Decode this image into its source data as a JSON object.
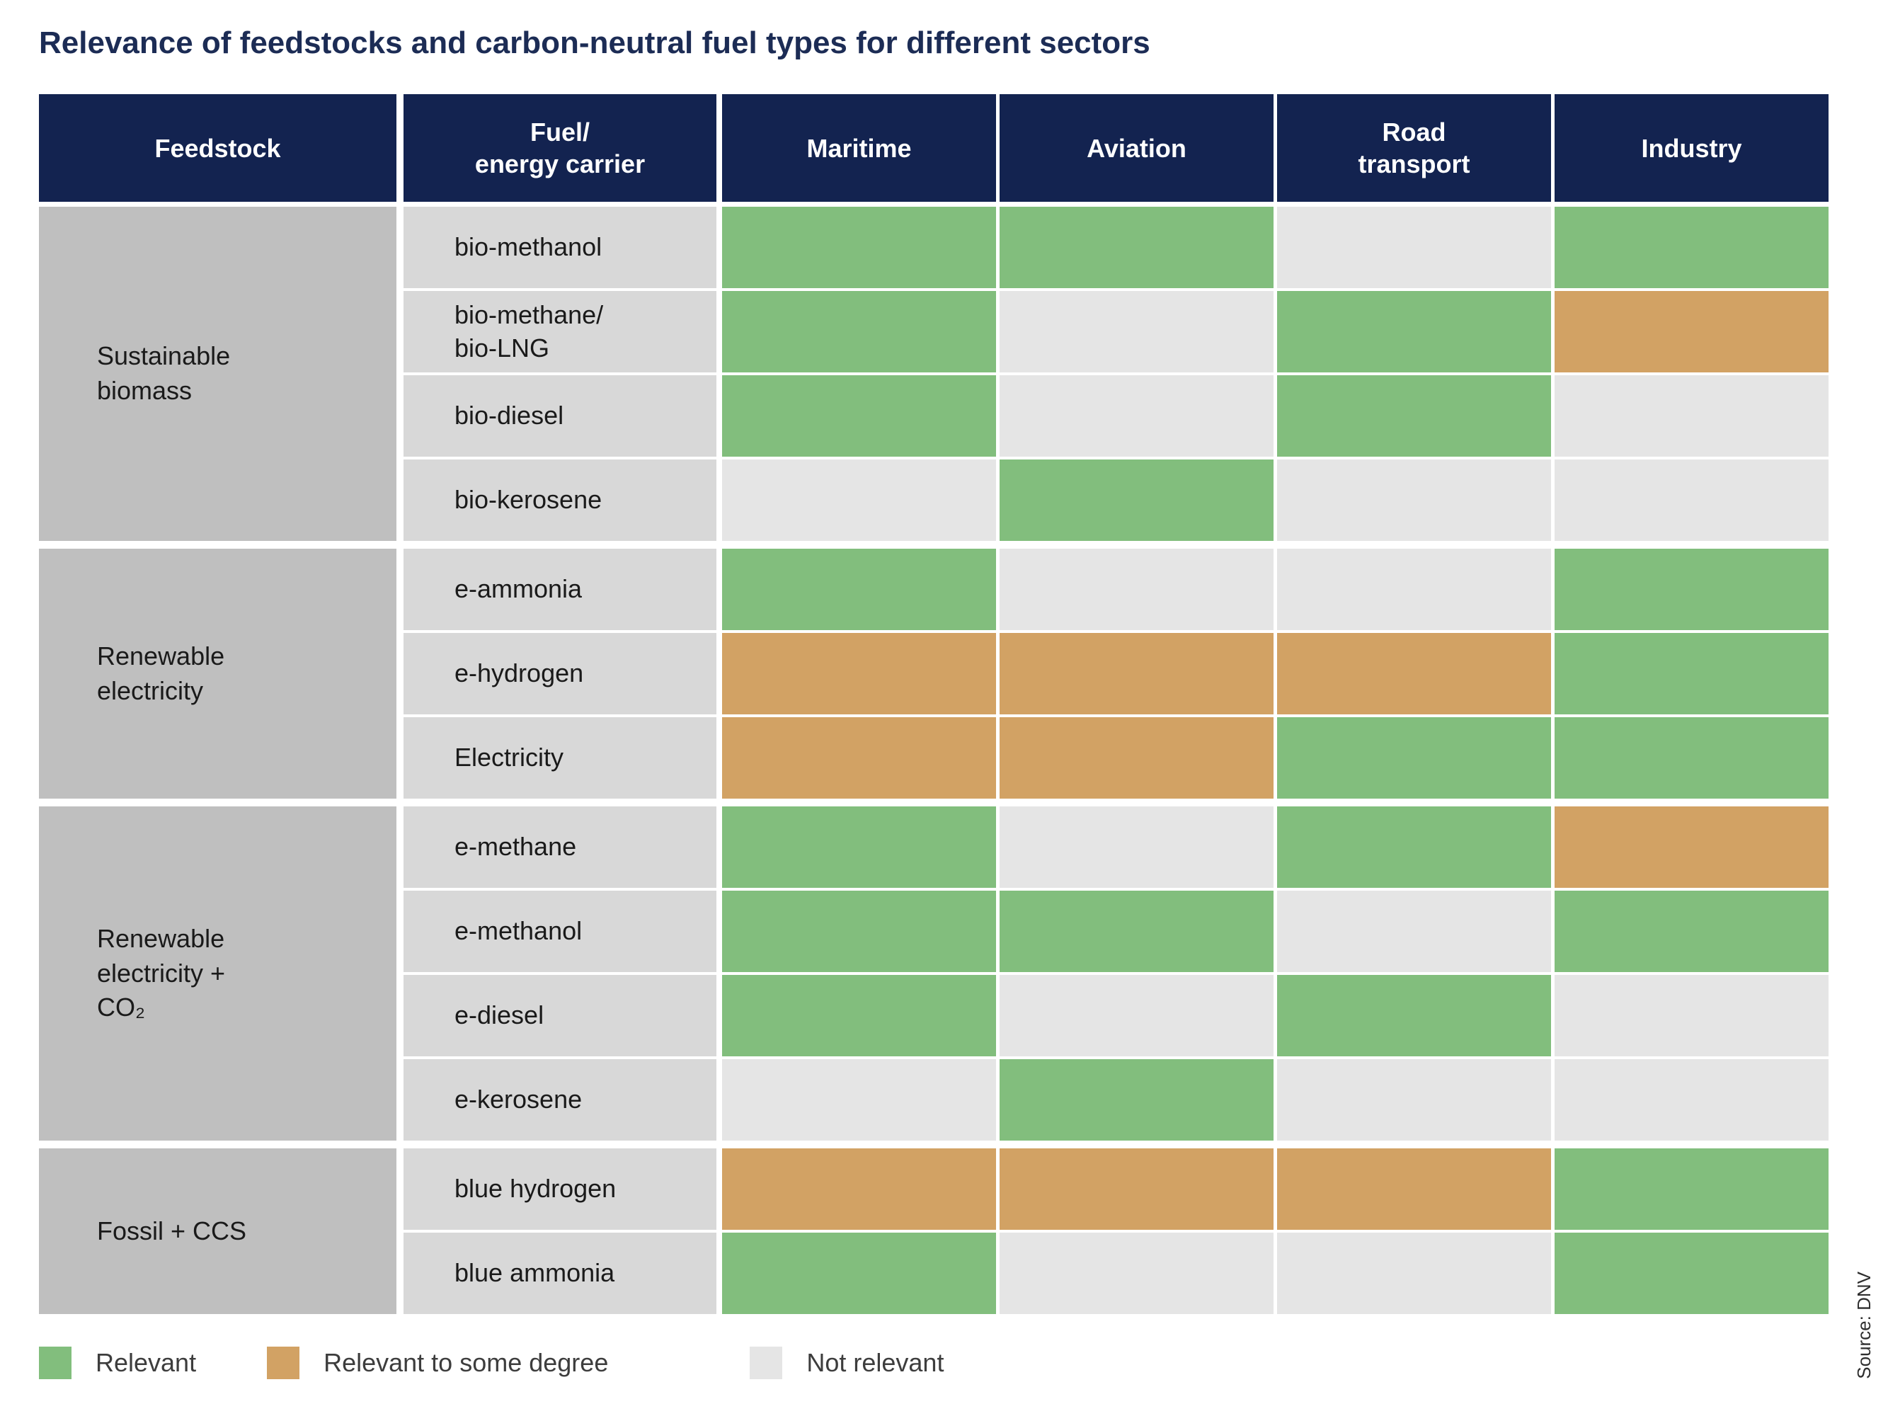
{
  "title": "Relevance of feedstocks and carbon-neutral fuel types for different sectors",
  "source": "Source: DNV",
  "colors": {
    "header_bg": "#132350",
    "title_text": "#1c2c55",
    "feedstock_bg": "#bfbfbf",
    "fuel_bg": "#d8d8d8",
    "relevant": "#82be7d",
    "some": "#d2a264",
    "not": "#e5e5e5"
  },
  "header": {
    "columns": [
      "Feedstock",
      "Fuel/\nenergy carrier",
      "Maritime",
      "Aviation",
      "Road\ntransport",
      "Industry"
    ]
  },
  "legend": [
    {
      "key": "relevant",
      "label": "Relevant"
    },
    {
      "key": "some",
      "label": "Relevant to some degree"
    },
    {
      "key": "not",
      "label": "Not relevant"
    }
  ],
  "chart_data": {
    "type": "heatmap",
    "title": "Relevance of feedstocks and carbon-neutral fuel types for different sectors",
    "sector_columns": [
      "Maritime",
      "Aviation",
      "Road transport",
      "Industry"
    ],
    "value_labels": {
      "relevant": "Relevant",
      "some": "Relevant to some degree",
      "not": "Not relevant"
    },
    "groups": [
      {
        "feedstock": "Sustainable\nbiomass",
        "rows": [
          {
            "fuel": "bio-methanol",
            "values": [
              "relevant",
              "relevant",
              "not",
              "relevant"
            ]
          },
          {
            "fuel": "bio-methane/\nbio-LNG",
            "values": [
              "relevant",
              "not",
              "relevant",
              "some"
            ]
          },
          {
            "fuel": "bio-diesel",
            "values": [
              "relevant",
              "not",
              "relevant",
              "not"
            ]
          },
          {
            "fuel": "bio-kerosene",
            "values": [
              "not",
              "relevant",
              "not",
              "not"
            ]
          }
        ]
      },
      {
        "feedstock": "Renewable\nelectricity",
        "rows": [
          {
            "fuel": "e-ammonia",
            "values": [
              "relevant",
              "not",
              "not",
              "relevant"
            ]
          },
          {
            "fuel": "e-hydrogen",
            "values": [
              "some",
              "some",
              "some",
              "relevant"
            ]
          },
          {
            "fuel": "Electricity",
            "values": [
              "some",
              "some",
              "relevant",
              "relevant"
            ]
          }
        ]
      },
      {
        "feedstock": "Renewable\nelectricity +\nCO₂",
        "rows": [
          {
            "fuel": "e-methane",
            "values": [
              "relevant",
              "not",
              "relevant",
              "some"
            ]
          },
          {
            "fuel": "e-methanol",
            "values": [
              "relevant",
              "relevant",
              "not",
              "relevant"
            ]
          },
          {
            "fuel": "e-diesel",
            "values": [
              "relevant",
              "not",
              "relevant",
              "not"
            ]
          },
          {
            "fuel": "e-kerosene",
            "values": [
              "not",
              "relevant",
              "not",
              "not"
            ]
          }
        ]
      },
      {
        "feedstock": "Fossil + CCS",
        "rows": [
          {
            "fuel": "blue hydrogen",
            "values": [
              "some",
              "some",
              "some",
              "relevant"
            ]
          },
          {
            "fuel": "blue ammonia",
            "values": [
              "relevant",
              "not",
              "not",
              "relevant"
            ]
          }
        ]
      }
    ]
  }
}
